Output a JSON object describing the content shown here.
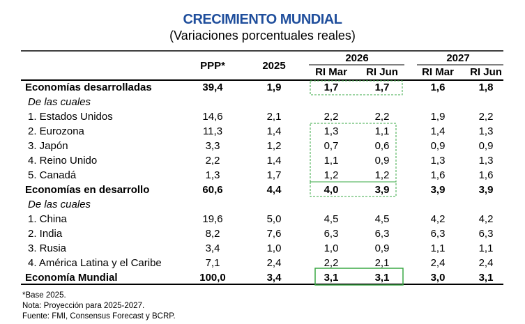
{
  "header": {
    "title": "CRECIMIENTO MUNDIAL",
    "subtitle": "(Variaciones porcentuales reales)"
  },
  "table": {
    "groups": [
      "2026",
      "2027"
    ],
    "columns": [
      "PPP*",
      "2025",
      "RI Mar",
      "RI Jun",
      "RI Mar",
      "RI Jun"
    ],
    "rows": [
      {
        "label": "Economías desarrolladas",
        "values": [
          "39,4",
          "1,9",
          "1,7",
          "1,7",
          "1,6",
          "1,8"
        ]
      },
      {
        "label": "De las cuales"
      },
      {
        "label": "1. Estados Unidos",
        "values": [
          "14,6",
          "2,1",
          "2,2",
          "2,2",
          "1,9",
          "2,2"
        ]
      },
      {
        "label": "2. Eurozona",
        "values": [
          "11,3",
          "1,4",
          "1,3",
          "1,1",
          "1,4",
          "1,3"
        ]
      },
      {
        "label": "3. Japón",
        "values": [
          "3,3",
          "1,2",
          "0,7",
          "0,6",
          "0,9",
          "0,9"
        ]
      },
      {
        "label": "4. Reino Unido",
        "values": [
          "2,2",
          "1,4",
          "1,1",
          "0,9",
          "1,3",
          "1,3"
        ]
      },
      {
        "label": "5. Canadá",
        "values": [
          "1,3",
          "1,7",
          "1,2",
          "1,2",
          "1,6",
          "1,6"
        ]
      },
      {
        "label": "Economías en desarrollo",
        "values": [
          "60,6",
          "4,4",
          "4,0",
          "3,9",
          "3,9",
          "3,9"
        ]
      },
      {
        "label": "De las cuales"
      },
      {
        "label": "1. China",
        "values": [
          "19,6",
          "5,0",
          "4,5",
          "4,5",
          "4,2",
          "4,2"
        ]
      },
      {
        "label": "2. India",
        "values": [
          "8,2",
          "7,6",
          "6,3",
          "6,3",
          "6,3",
          "6,3"
        ]
      },
      {
        "label": "3. Rusia",
        "values": [
          "3,4",
          "1,0",
          "1,0",
          "0,9",
          "1,1",
          "1,1"
        ]
      },
      {
        "label": "4. América Latina y el Caribe",
        "values": [
          "7,1",
          "2,4",
          "2,2",
          "2,1",
          "2,4",
          "2,4"
        ]
      },
      {
        "label": "Economía Mundial",
        "values": [
          "100,0",
          "3,4",
          "3,1",
          "3,1",
          "3,0",
          "3,1"
        ]
      }
    ]
  },
  "notes": [
    "*Base 2025.",
    "Nota: Proyección para 2025-2027.",
    "Fuente:  FMI, Consensus Forecast y BCRP."
  ]
}
